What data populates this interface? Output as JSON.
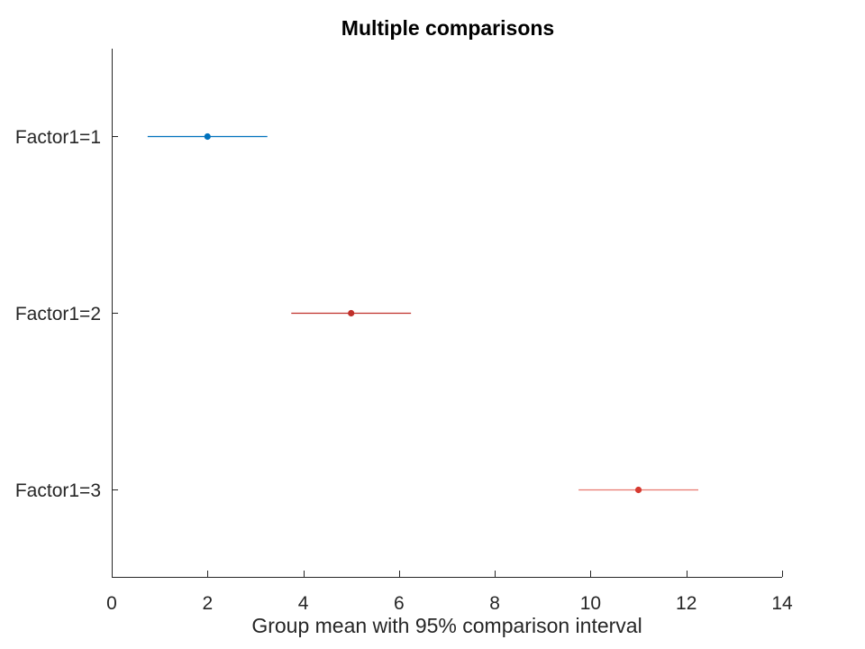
{
  "chart_data": {
    "type": "errorbar",
    "title": "Multiple comparisons",
    "xlabel": "Group mean with 95% comparison interval",
    "ylabel": "",
    "xlim": [
      0,
      14
    ],
    "xticks": [
      0,
      2,
      4,
      6,
      8,
      10,
      12,
      14
    ],
    "xtick_labels": [
      "0",
      "2",
      "4",
      "6",
      "8",
      "10",
      "12",
      "14"
    ],
    "groups": [
      {
        "label": "Factor1=1",
        "mean": 2,
        "lower": 0.75,
        "upper": 3.25,
        "color": "#0072BD"
      },
      {
        "label": "Factor1=2",
        "mean": 5,
        "lower": 3.75,
        "upper": 6.25,
        "color": "#C0302A"
      },
      {
        "label": "Factor1=3",
        "mean": 11,
        "lower": 9.75,
        "upper": 12.25,
        "color": "#E8776E",
        "marker_color": "#D63A30"
      }
    ],
    "grid": false,
    "legend": "none"
  }
}
